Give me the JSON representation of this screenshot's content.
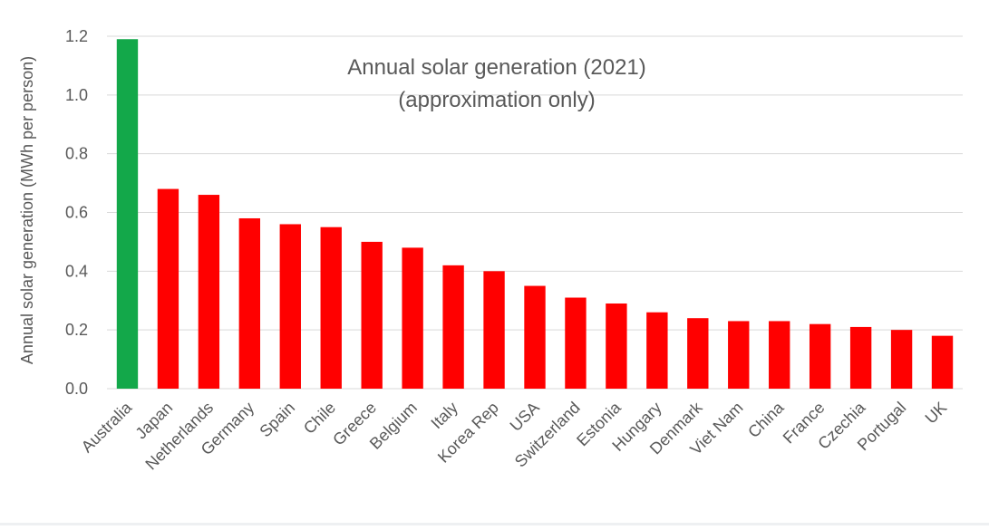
{
  "chart_data": {
    "type": "bar",
    "title": "Annual solar generation (2021)",
    "subtitle": "(approximation only)",
    "xlabel": "",
    "ylabel": "Annual solar generation (MWh per person)",
    "ylim": [
      0,
      1.2
    ],
    "yticks": [
      "0.0",
      "0.2",
      "0.4",
      "0.6",
      "0.8",
      "1.0",
      "1.2"
    ],
    "grid": true,
    "categories": [
      "Australia",
      "Japan",
      "Netherlands",
      "Germany",
      "Spain",
      "Chile",
      "Greece",
      "Belgium",
      "Italy",
      "Korea Rep",
      "USA",
      "Switzerland",
      "Estonia",
      "Hungary",
      "Denmark",
      "Viet Nam",
      "China",
      "France",
      "Czechia",
      "Portugal",
      "UK"
    ],
    "values": [
      1.19,
      0.68,
      0.66,
      0.58,
      0.56,
      0.55,
      0.5,
      0.48,
      0.42,
      0.4,
      0.35,
      0.31,
      0.29,
      0.26,
      0.24,
      0.23,
      0.23,
      0.22,
      0.21,
      0.2,
      0.18
    ],
    "colors": {
      "highlight": "#13a84a",
      "default": "#ff0000",
      "grid": "#d9d9d9",
      "text": "#595959"
    },
    "highlight_index": 0
  }
}
